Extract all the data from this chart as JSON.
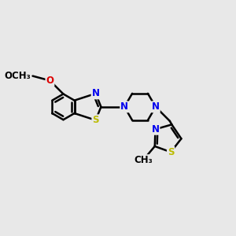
{
  "bg_color": "#e8e8e8",
  "bond_color": "#000000",
  "bond_width": 1.8,
  "atom_colors": {
    "N": "#0000ee",
    "S": "#bbbb00",
    "O": "#dd0000",
    "C": "#000000"
  },
  "font_size": 8.5,
  "figsize": [
    3.0,
    3.0
  ],
  "dpi": 100,
  "xlim": [
    0,
    10
  ],
  "ylim": [
    0,
    10
  ]
}
